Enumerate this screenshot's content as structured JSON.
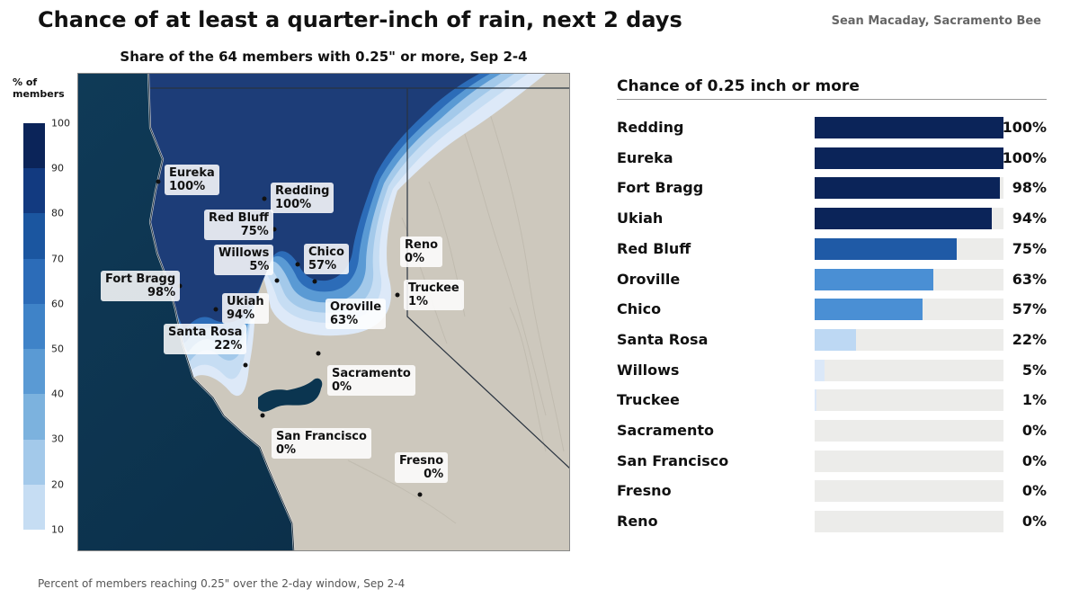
{
  "title": "Chance of at least a quarter-inch of rain, next 2 days",
  "credit": "Sean Macaday, Sacramento Bee",
  "map": {
    "subtitle": "Share of the 64 members with 0.25\" or more, Sep 2-4",
    "legend_title": "% of members",
    "legend_ticks": [
      "100",
      "90",
      "80",
      "70",
      "60",
      "50",
      "40",
      "30",
      "20",
      "10"
    ],
    "legend_colors": [
      "#0b2459",
      "#123a80",
      "#1b56a0",
      "#2c6cb8",
      "#3f83c8",
      "#5a9ad4",
      "#7cb2de",
      "#a3c9ea",
      "#c6ddf3",
      "#dde9f8"
    ],
    "cities": [
      {
        "name": "Eureka",
        "value": "100%"
      },
      {
        "name": "Redding",
        "value": "100%"
      },
      {
        "name": "Red Bluff",
        "value": "75%"
      },
      {
        "name": "Willows",
        "value": "5%"
      },
      {
        "name": "Chico",
        "value": "57%"
      },
      {
        "name": "Reno",
        "value": "0%"
      },
      {
        "name": "Fort Bragg",
        "value": "98%"
      },
      {
        "name": "Truckee",
        "value": "1%"
      },
      {
        "name": "Ukiah",
        "value": "94%"
      },
      {
        "name": "Oroville",
        "value": "63%"
      },
      {
        "name": "Santa Rosa",
        "value": "22%"
      },
      {
        "name": "Sacramento",
        "value": "0%"
      },
      {
        "name": "San Francisco",
        "value": "0%"
      },
      {
        "name": "Fresno",
        "value": "0%"
      }
    ]
  },
  "chart_data": {
    "type": "bar",
    "title": "Chance of 0.25 inch or more",
    "categories": [
      "Redding",
      "Eureka",
      "Fort Bragg",
      "Ukiah",
      "Red Bluff",
      "Oroville",
      "Chico",
      "Santa Rosa",
      "Willows",
      "Truckee",
      "Sacramento",
      "San Francisco",
      "Fresno",
      "Reno"
    ],
    "values": [
      100,
      100,
      98,
      94,
      75,
      63,
      57,
      22,
      5,
      1,
      0,
      0,
      0,
      0
    ],
    "value_labels": [
      "100%",
      "100%",
      "98%",
      "94%",
      "75%",
      "63%",
      "57%",
      "22%",
      "5%",
      "1%",
      "0%",
      "0%",
      "0%",
      "0%"
    ],
    "xlim": [
      0,
      100
    ]
  },
  "footnote": "Percent of members reaching 0.25\" over the 2-day window, Sep 2-4"
}
